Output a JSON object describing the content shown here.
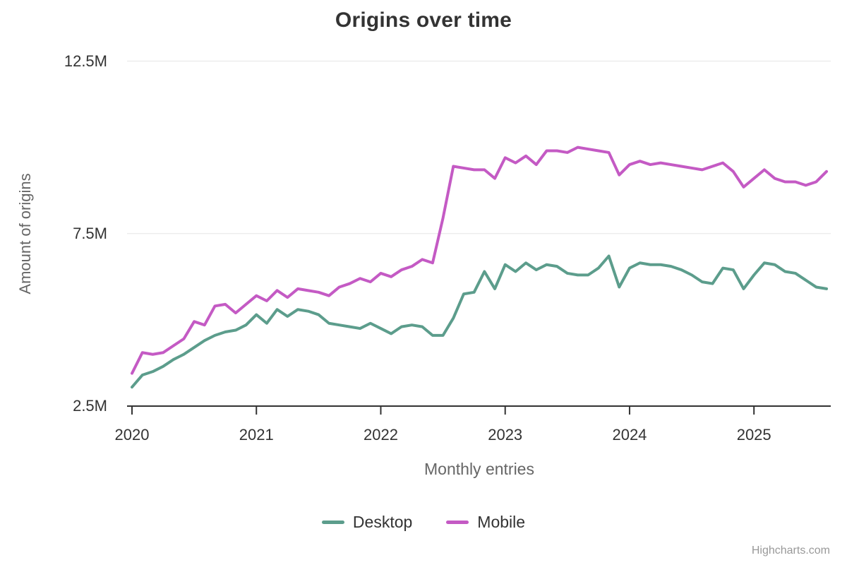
{
  "title": "Origins over time",
  "credits": "Highcharts.com",
  "colors": {
    "desktop": "#5C9D8C",
    "mobile": "#C45AC4",
    "grid": "#E6E6E6",
    "axis": "#333333",
    "text_dark": "#333333",
    "text_muted": "#666666",
    "credits_color": "#999999"
  },
  "chart_data": {
    "type": "line",
    "title": "Origins over time",
    "xlabel": "Monthly entries",
    "ylabel": "Amount of origins",
    "unit": "M",
    "ylim": [
      2.5,
      12.5
    ],
    "grid": "horizontal-only",
    "legend_position": "bottom-center",
    "y_ticks": [
      {
        "value": 2.5,
        "label": "2.5M"
      },
      {
        "value": 7.5,
        "label": "7.5M"
      },
      {
        "value": 12.5,
        "label": "12.5M"
      }
    ],
    "x_tick_labels": [
      "2020",
      "2021",
      "2022",
      "2023",
      "2024",
      "2025"
    ],
    "x_tick_month_indices": [
      0,
      12,
      24,
      36,
      48,
      60
    ],
    "x": [
      "2020-01",
      "2020-02",
      "2020-03",
      "2020-04",
      "2020-05",
      "2020-06",
      "2020-07",
      "2020-08",
      "2020-09",
      "2020-10",
      "2020-11",
      "2020-12",
      "2021-01",
      "2021-02",
      "2021-03",
      "2021-04",
      "2021-05",
      "2021-06",
      "2021-07",
      "2021-08",
      "2021-09",
      "2021-10",
      "2021-11",
      "2021-12",
      "2022-01",
      "2022-02",
      "2022-03",
      "2022-04",
      "2022-05",
      "2022-06",
      "2022-07",
      "2022-08",
      "2022-09",
      "2022-10",
      "2022-11",
      "2022-12",
      "2023-01",
      "2023-02",
      "2023-03",
      "2023-04",
      "2023-05",
      "2023-06",
      "2023-07",
      "2023-08",
      "2023-09",
      "2023-10",
      "2023-11",
      "2023-12",
      "2024-01",
      "2024-02",
      "2024-03",
      "2024-04",
      "2024-05",
      "2024-06",
      "2024-07",
      "2024-08",
      "2024-09",
      "2024-10",
      "2024-11",
      "2024-12",
      "2025-01",
      "2025-02",
      "2025-03",
      "2025-04",
      "2025-05",
      "2025-06",
      "2025-07",
      "2025-08"
    ],
    "series": [
      {
        "name": "Desktop",
        "color": "#5C9D8C",
        "values": [
          3.05,
          3.4,
          3.5,
          3.65,
          3.85,
          4.0,
          4.2,
          4.4,
          4.55,
          4.65,
          4.7,
          4.85,
          5.15,
          4.9,
          5.3,
          5.1,
          5.3,
          5.25,
          5.15,
          4.9,
          4.85,
          4.8,
          4.75,
          4.9,
          4.75,
          4.6,
          4.8,
          4.85,
          4.8,
          4.55,
          4.55,
          5.05,
          5.75,
          5.8,
          6.4,
          5.9,
          6.6,
          6.4,
          6.65,
          6.45,
          6.6,
          6.55,
          6.35,
          6.3,
          6.3,
          6.5,
          6.85,
          5.95,
          6.5,
          6.65,
          6.6,
          6.6,
          6.55,
          6.45,
          6.3,
          6.1,
          6.05,
          6.5,
          6.45,
          5.9,
          6.3,
          6.65,
          6.6,
          6.4,
          6.35,
          6.15,
          5.95,
          5.9
        ]
      },
      {
        "name": "Mobile",
        "color": "#C45AC4",
        "values": [
          3.45,
          4.05,
          4.0,
          4.05,
          4.25,
          4.45,
          4.95,
          4.85,
          5.4,
          5.45,
          5.2,
          5.45,
          5.7,
          5.55,
          5.85,
          5.65,
          5.9,
          5.85,
          5.8,
          5.7,
          5.95,
          6.05,
          6.2,
          6.1,
          6.35,
          6.25,
          6.45,
          6.55,
          6.75,
          6.65,
          7.95,
          9.45,
          9.4,
          9.35,
          9.35,
          9.1,
          9.7,
          9.55,
          9.75,
          9.5,
          9.9,
          9.9,
          9.85,
          10.0,
          9.95,
          9.9,
          9.85,
          9.2,
          9.5,
          9.6,
          9.5,
          9.55,
          9.5,
          9.45,
          9.4,
          9.35,
          9.45,
          9.55,
          9.3,
          8.85,
          9.1,
          9.35,
          9.1,
          9.0,
          9.0,
          8.9,
          9.0,
          9.3
        ]
      }
    ]
  }
}
